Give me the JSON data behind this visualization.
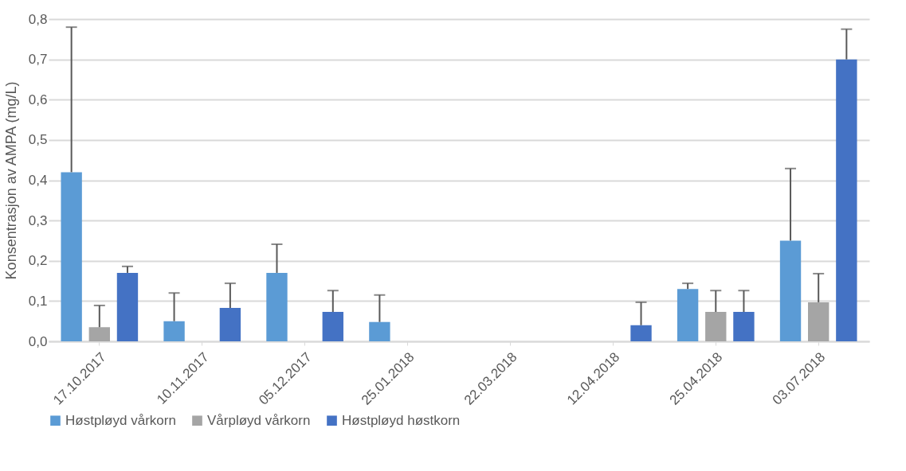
{
  "chart_data": {
    "type": "bar",
    "ylabel": "Konsentrasjon av AMPA (mg/L)",
    "categories": [
      "17.10.2017",
      "10.11.2017",
      "05.12.2017",
      "25.01.2018",
      "22.03.2018",
      "12.04.2018",
      "25.04.2018",
      "03.07.2018"
    ],
    "series": [
      {
        "name": "Høstpløyd vårkorn",
        "color": "#5b9bd5",
        "values": [
          0.42,
          0.05,
          0.17,
          0.048,
          null,
          null,
          0.13,
          0.25
        ],
        "errors": [
          [
            0.42,
            0.78
          ],
          [
            0.05,
            0.12
          ],
          [
            0.17,
            0.241
          ],
          [
            0.048,
            0.115
          ],
          null,
          null,
          [
            0.13,
            0.144
          ],
          [
            0.25,
            0.429
          ]
        ]
      },
      {
        "name": "Vårpløyd vårkorn",
        "color": "#a5a5a5",
        "values": [
          0.035,
          null,
          null,
          null,
          null,
          null,
          0.073,
          0.097
        ],
        "errors": [
          [
            0.035,
            0.089
          ],
          null,
          null,
          null,
          null,
          null,
          [
            0.073,
            0.126
          ],
          [
            0.097,
            0.168
          ]
        ]
      },
      {
        "name": "Høstpløyd høstkorn",
        "color": "#4472c4",
        "values": [
          0.17,
          0.083,
          0.073,
          null,
          null,
          0.04,
          0.073,
          0.7
        ],
        "errors": [
          [
            0.17,
            0.186
          ],
          [
            0.083,
            0.144
          ],
          [
            0.073,
            0.126
          ],
          null,
          null,
          [
            0.04,
            0.097
          ],
          [
            0.073,
            0.126
          ],
          [
            0.7,
            0.775
          ]
        ]
      }
    ],
    "ylim": [
      0,
      0.8
    ],
    "yticks": [
      {
        "value": 0,
        "label": "0,0"
      },
      {
        "value": 0.1,
        "label": "0,1"
      },
      {
        "value": 0.2,
        "label": "0,2"
      },
      {
        "value": 0.3,
        "label": "0,3"
      },
      {
        "value": 0.4,
        "label": "0,4"
      },
      {
        "value": 0.5,
        "label": "0,5"
      },
      {
        "value": 0.6,
        "label": "0,6"
      },
      {
        "value": 0.7,
        "label": "0,7"
      },
      {
        "value": 0.8,
        "label": "0,8"
      }
    ],
    "grid": true,
    "legend": "bottom"
  }
}
